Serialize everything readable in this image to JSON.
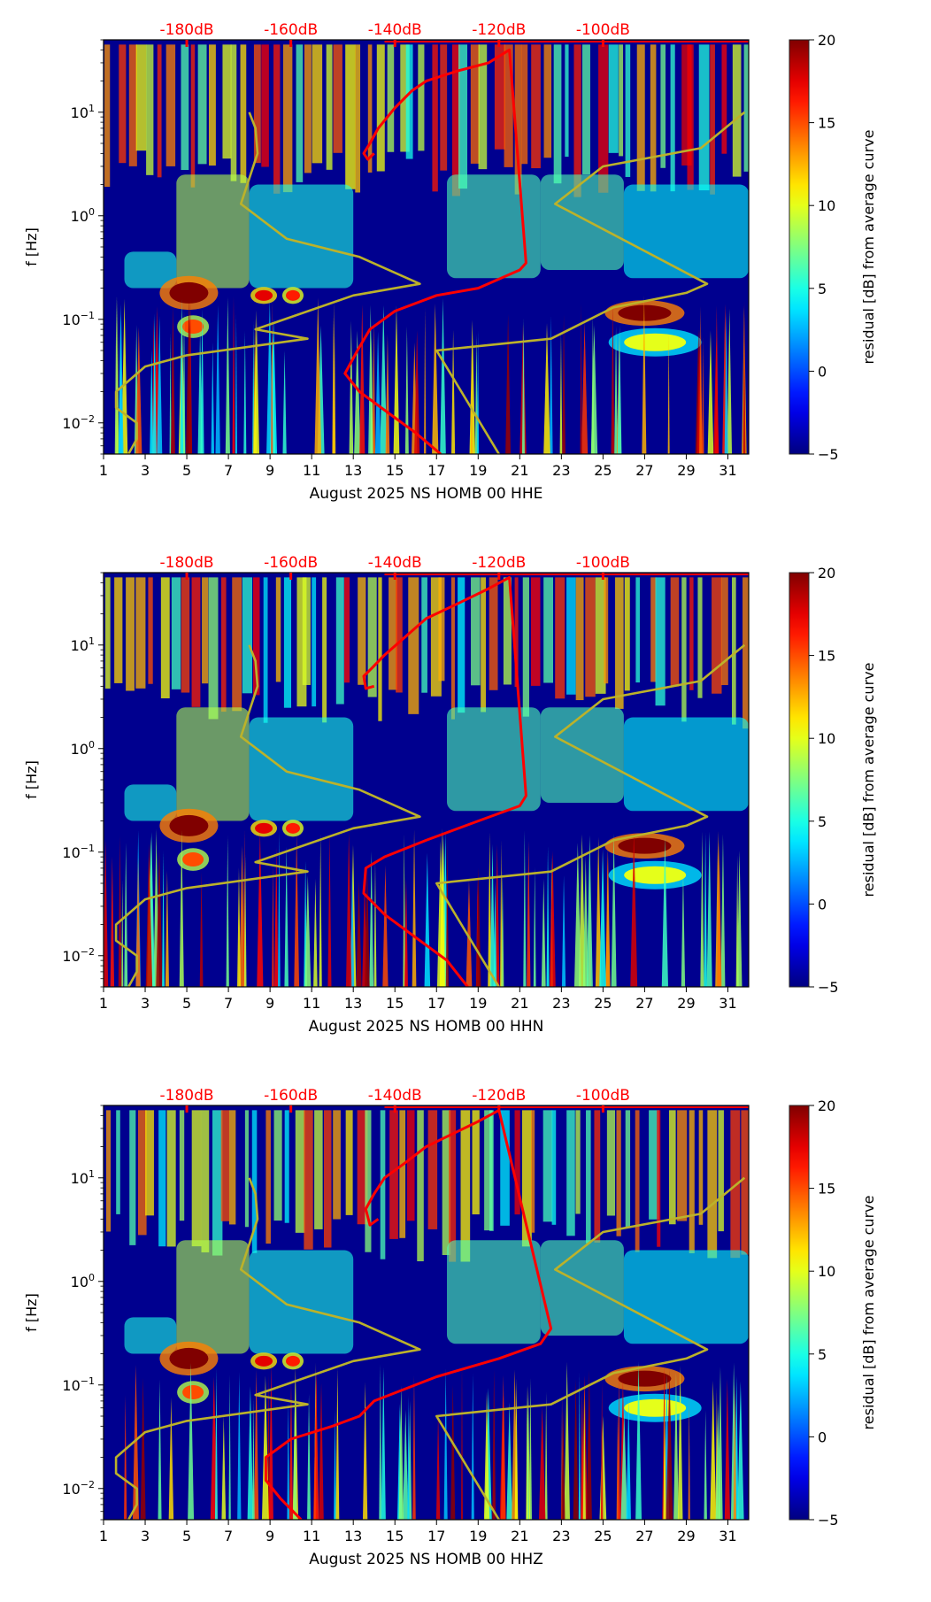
{
  "chart_data": [
    {
      "type": "heatmap",
      "title": "",
      "xlabel": "August 2025 NS HOMB 00 HHE",
      "ylabel": "f [Hz]",
      "xlim": [
        1,
        32
      ],
      "ylim": [
        0.005,
        50
      ],
      "yscale": "log",
      "x_ticks": [
        "1",
        "3",
        "5",
        "7",
        "9",
        "11",
        "13",
        "15",
        "17",
        "19",
        "21",
        "23",
        "25",
        "27",
        "29",
        "31"
      ],
      "y_ticks": [
        {
          "value": 0.01,
          "base": "10",
          "exp": "−2"
        },
        {
          "value": 0.1,
          "base": "10",
          "exp": "−1"
        },
        {
          "value": 1,
          "base": "10",
          "exp": "0"
        },
        {
          "value": 10,
          "base": "10",
          "exp": "1"
        }
      ],
      "top_axis_labels": [
        "-180dB",
        "-160dB",
        "-140dB",
        "-120dB",
        "-100dB"
      ],
      "colorbar": {
        "label": "residual [dB] from average curve",
        "range": [
          -5,
          20
        ],
        "ticks": [
          "−5",
          "0",
          "5",
          "10",
          "15",
          "20"
        ],
        "cmap": "jet"
      },
      "series": [
        {
          "name": "station PSD curve (red)",
          "color": "#ff0000",
          "x": [
            14.0,
            13.7,
            13.5,
            13.8,
            14.2,
            15.0,
            15.8,
            16.5,
            18.0,
            19.5,
            20.5,
            21.3,
            21.0,
            19.0,
            17.0,
            15.0,
            13.8,
            13.2,
            12.6,
            13.3,
            14.8,
            16.0,
            17.2
          ],
          "y": [
            4.0,
            3.5,
            4.0,
            5.0,
            7.0,
            11.0,
            16.0,
            20.0,
            25.0,
            30.0,
            40.0,
            0.35,
            0.3,
            0.2,
            0.17,
            0.12,
            0.08,
            0.05,
            0.03,
            0.02,
            0.012,
            0.008,
            0.005
          ]
        },
        {
          "name": "noise model curve (yellow, left)",
          "color": "#bcb22a",
          "x": [
            8.0,
            8.3,
            8.4,
            7.6,
            9.8,
            13.3,
            16.2,
            13.0,
            8.3,
            10.8,
            5.0,
            3.0,
            1.6,
            1.6,
            2.6,
            2.6,
            2.2
          ],
          "y": [
            10.0,
            7.0,
            4.0,
            1.3,
            0.6,
            0.4,
            0.22,
            0.17,
            0.08,
            0.065,
            0.045,
            0.035,
            0.02,
            0.014,
            0.01,
            0.007,
            0.005
          ]
        },
        {
          "name": "noise model curve (yellow, right)",
          "color": "#bcb22a",
          "x": [
            31.8,
            29.7,
            25.0,
            22.7,
            30.0,
            29.0,
            25.5,
            22.5,
            17.0,
            20.0
          ],
          "y": [
            10.0,
            4.5,
            3.0,
            1.3,
            0.22,
            0.18,
            0.13,
            0.065,
            0.05,
            0.005
          ]
        }
      ]
    },
    {
      "type": "heatmap",
      "title": "",
      "xlabel": "August 2025 NS HOMB 00 HHN",
      "ylabel": "f [Hz]",
      "xlim": [
        1,
        32
      ],
      "ylim": [
        0.005,
        50
      ],
      "yscale": "log",
      "x_ticks": [
        "1",
        "3",
        "5",
        "7",
        "9",
        "11",
        "13",
        "15",
        "17",
        "19",
        "21",
        "23",
        "25",
        "27",
        "29",
        "31"
      ],
      "y_ticks": [
        {
          "value": 0.01,
          "base": "10",
          "exp": "−2"
        },
        {
          "value": 0.1,
          "base": "10",
          "exp": "−1"
        },
        {
          "value": 1,
          "base": "10",
          "exp": "0"
        },
        {
          "value": 10,
          "base": "10",
          "exp": "1"
        }
      ],
      "top_axis_labels": [
        "-180dB",
        "-160dB",
        "-140dB",
        "-120dB",
        "-100dB"
      ],
      "colorbar": {
        "label": "residual [dB] from average curve",
        "range": [
          -5,
          20
        ],
        "ticks": [
          "−5",
          "0",
          "5",
          "10",
          "15",
          "20"
        ],
        "cmap": "jet"
      },
      "series": [
        {
          "name": "station PSD curve (red)",
          "color": "#ff0000",
          "x": [
            14.0,
            13.6,
            13.5,
            13.9,
            14.5,
            15.5,
            16.5,
            18.0,
            19.5,
            20.5,
            21.3,
            21.0,
            19.0,
            16.5,
            14.5,
            13.6,
            13.5,
            14.5,
            16.0,
            17.5,
            18.5
          ],
          "y": [
            4.0,
            3.8,
            5.0,
            6.0,
            8.0,
            12.0,
            18.0,
            25.0,
            35.0,
            45.0,
            0.35,
            0.28,
            0.2,
            0.13,
            0.09,
            0.07,
            0.04,
            0.025,
            0.015,
            0.009,
            0.005
          ]
        },
        {
          "name": "noise model curve (yellow, left)",
          "color": "#bcb22a",
          "x": [
            8.0,
            8.3,
            8.4,
            7.6,
            9.8,
            13.3,
            16.2,
            13.0,
            8.3,
            10.8,
            5.0,
            3.0,
            1.6,
            1.6,
            2.6,
            2.6,
            2.2
          ],
          "y": [
            10.0,
            7.0,
            4.0,
            1.3,
            0.6,
            0.4,
            0.22,
            0.17,
            0.08,
            0.065,
            0.045,
            0.035,
            0.02,
            0.014,
            0.01,
            0.007,
            0.005
          ]
        },
        {
          "name": "noise model curve (yellow, right)",
          "color": "#bcb22a",
          "x": [
            31.8,
            29.7,
            25.0,
            22.7,
            30.0,
            29.0,
            25.5,
            22.5,
            17.0,
            20.0
          ],
          "y": [
            10.0,
            4.5,
            3.0,
            1.3,
            0.22,
            0.18,
            0.13,
            0.065,
            0.05,
            0.005
          ]
        }
      ]
    },
    {
      "type": "heatmap",
      "title": "",
      "xlabel": "August 2025 NS HOMB 00 HHZ",
      "ylabel": "f [Hz]",
      "xlim": [
        1,
        32
      ],
      "ylim": [
        0.005,
        50
      ],
      "yscale": "log",
      "x_ticks": [
        "1",
        "3",
        "5",
        "7",
        "9",
        "11",
        "13",
        "15",
        "17",
        "19",
        "21",
        "23",
        "25",
        "27",
        "29",
        "31"
      ],
      "y_ticks": [
        {
          "value": 0.01,
          "base": "10",
          "exp": "−2"
        },
        {
          "value": 0.1,
          "base": "10",
          "exp": "−1"
        },
        {
          "value": 1,
          "base": "10",
          "exp": "0"
        },
        {
          "value": 10,
          "base": "10",
          "exp": "1"
        }
      ],
      "top_axis_labels": [
        "-180dB",
        "-160dB",
        "-140dB",
        "-120dB",
        "-100dB"
      ],
      "colorbar": {
        "label": "residual [dB] from average curve",
        "range": [
          -5,
          20
        ],
        "ticks": [
          "−5",
          "0",
          "5",
          "10",
          "15",
          "20"
        ],
        "cmap": "jet"
      },
      "series": [
        {
          "name": "station PSD curve (red)",
          "color": "#ff0000",
          "x": [
            14.2,
            13.8,
            13.6,
            14.0,
            14.5,
            15.5,
            16.5,
            17.5,
            19.0,
            20.0,
            22.5,
            22.0,
            20.0,
            17.0,
            14.0,
            13.3,
            12.0,
            10.0,
            8.8,
            8.8,
            9.5,
            10.5
          ],
          "y": [
            4.0,
            3.5,
            5.0,
            7.0,
            10.0,
            14.0,
            20.0,
            25.0,
            35.0,
            45.0,
            0.35,
            0.25,
            0.18,
            0.12,
            0.07,
            0.05,
            0.04,
            0.03,
            0.02,
            0.012,
            0.008,
            0.005
          ]
        },
        {
          "name": "noise model curve (yellow, left)",
          "color": "#bcb22a",
          "x": [
            8.0,
            8.3,
            8.4,
            7.6,
            9.8,
            13.3,
            16.2,
            13.0,
            8.3,
            10.8,
            5.0,
            3.0,
            1.6,
            1.6,
            2.6,
            2.6,
            2.2
          ],
          "y": [
            10.0,
            7.0,
            4.0,
            1.3,
            0.6,
            0.4,
            0.22,
            0.17,
            0.08,
            0.065,
            0.045,
            0.035,
            0.02,
            0.014,
            0.01,
            0.007,
            0.005
          ]
        },
        {
          "name": "noise model curve (yellow, right)",
          "color": "#bcb22a",
          "x": [
            31.8,
            29.7,
            25.0,
            22.7,
            30.0,
            29.0,
            25.5,
            22.5,
            17.0,
            20.0
          ],
          "y": [
            10.0,
            4.5,
            3.0,
            1.3,
            0.22,
            0.18,
            0.13,
            0.065,
            0.05,
            0.005
          ]
        }
      ]
    }
  ],
  "colors": {
    "top_axis_label": "#ff0000",
    "red_curve": "#ff0000",
    "yellow_curve": "#bcb22a",
    "background_low": "#00008f"
  }
}
